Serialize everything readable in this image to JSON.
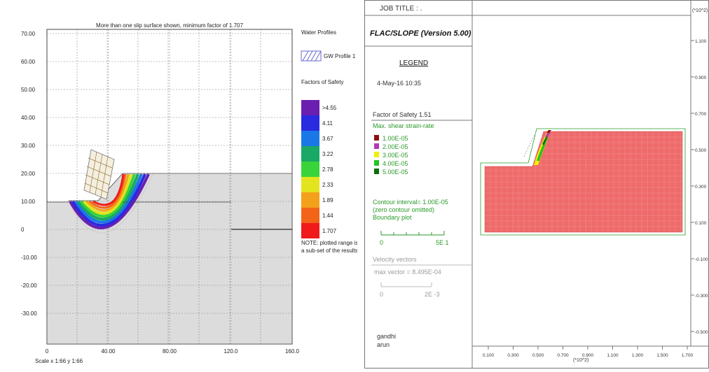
{
  "left_panel": {
    "title": "More than one slip surface shown, minimum factor of 1.707",
    "y_ticks": [
      "70.00",
      "60.00",
      "50.00",
      "40.00",
      "30.00",
      "20.00",
      "10.00",
      "0",
      "-10.00",
      "-20.00",
      "-30.00"
    ],
    "x_ticks": [
      "0",
      "40.00",
      "80.00",
      "120.0",
      "160.0"
    ],
    "scale_text": "Scale x 1:66 y 1:66",
    "legend": {
      "water_title": "Water Profiles",
      "gw_label": "GW Profile 1",
      "fos_title": "Factors of Safety",
      "fos_items": [
        {
          "label": ">4.55",
          "color": "#6a1fb0"
        },
        {
          "label": "4.11",
          "color": "#2a2ae0"
        },
        {
          "label": "3.67",
          "color": "#1a78e6"
        },
        {
          "label": "3.22",
          "color": "#19a865"
        },
        {
          "label": "2.78",
          "color": "#38d43a"
        },
        {
          "label": "2.33",
          "color": "#e4e41e"
        },
        {
          "label": "1.89",
          "color": "#f3a11a"
        },
        {
          "label": "1.44",
          "color": "#f26418"
        },
        {
          "label": "1.707",
          "color": "#f01a1a"
        }
      ],
      "note": "NOTE: plotted range is a sub-set of the results"
    }
  },
  "right_panel": {
    "job_title": "JOB TITLE : .",
    "program": "FLAC/SLOPE (Version 5.00)",
    "legend_title": "LEGEND",
    "date": "4-May-16  10:35",
    "fos_label": "Factor of Safety  1.51",
    "strain_title": "Max. shear strain-rate",
    "strain_items": [
      {
        "label": "1.00E-05",
        "color": "#8b1010"
      },
      {
        "label": "2.00E-05",
        "color": "#b23bb2"
      },
      {
        "label": "3.00E-05",
        "color": "#f0f000"
      },
      {
        "label": "4.00E-05",
        "color": "#22c422"
      },
      {
        "label": "5.00E-05",
        "color": "#0e6e0e"
      }
    ],
    "contour_lines": [
      "Contour interval=  1.00E-05",
      "(zero contour omitted)",
      "Boundary plot"
    ],
    "boundary_scale": [
      "0",
      "5E  1"
    ],
    "velocity_title": "Velocity vectors",
    "max_vector": "max vector =    8.495E-04",
    "velocity_scale": [
      "0",
      "2E -3"
    ],
    "authors": [
      "gandhi",
      "arun"
    ],
    "y_ticks": [
      "1.100",
      "0.900",
      "0.700",
      "0.500",
      "0.300",
      "0.100",
      "-0.100",
      "-0.300",
      "-0.500"
    ],
    "y_multiplier": "(*10^2)",
    "x_ticks": [
      "0.100",
      "0.300",
      "0.500",
      "0.700",
      "0.900",
      "1.100",
      "1.300",
      "1.500",
      "1.700"
    ],
    "x_multiplier": "(*10^2)"
  }
}
